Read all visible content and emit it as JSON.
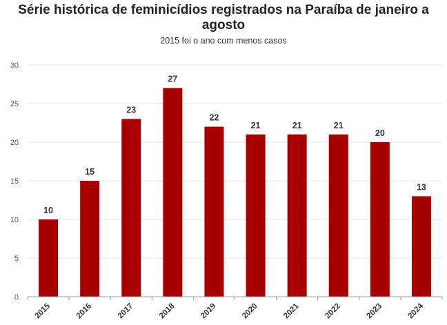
{
  "chart_data": {
    "type": "bar",
    "title": "Série histórica de feminicídios registrados na Paraíba de janeiro a agosto",
    "subtitle": "2015 foi o ano com menos casos",
    "xlabel": "",
    "ylabel": "",
    "categories": [
      "2015",
      "2016",
      "2017",
      "2018",
      "2019",
      "2020",
      "2021",
      "2022",
      "2023",
      "2024"
    ],
    "values": [
      10,
      15,
      23,
      27,
      22,
      21,
      21,
      21,
      20,
      13
    ],
    "ylim": [
      0,
      30
    ],
    "yticks": [
      0,
      5,
      10,
      15,
      20,
      25,
      30
    ],
    "grid": true,
    "legend": "none",
    "bar_color": "#a80000"
  }
}
